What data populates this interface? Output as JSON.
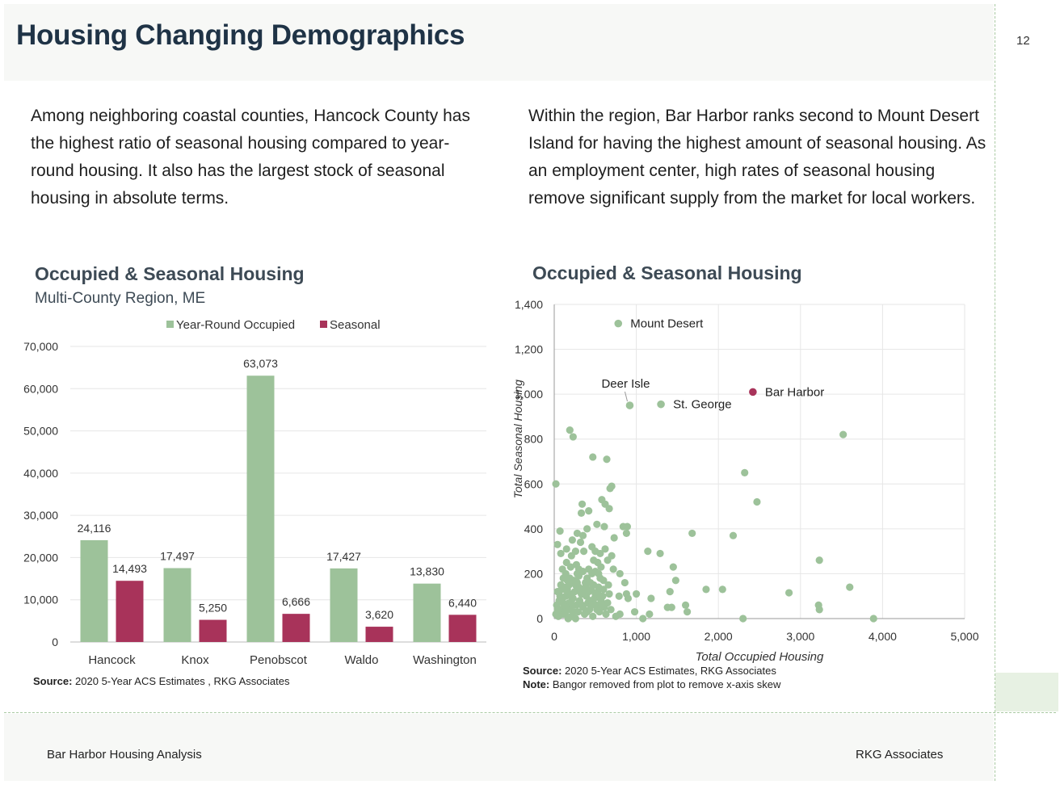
{
  "page": {
    "title": "Housing Changing Demographics",
    "page_number": "12",
    "footer_left": "Bar Harbor Housing Analysis",
    "footer_right": "RKG Associates",
    "accent_green": "#9dc29a",
    "accent_seasonal": "#a8335a"
  },
  "left": {
    "paragraph": "Among neighboring coastal counties, Hancock County has the highest ratio of seasonal housing compared to year-round housing. It also has the largest stock of seasonal housing in absolute terms.",
    "chart_title": "Occupied & Seasonal Housing",
    "chart_subtitle": "Multi-County Region, ME",
    "source_label": "Source:",
    "source_text": "2020 5-Year ACS Estimates , RKG Associates"
  },
  "right": {
    "paragraph": "Within the region, Bar Harbor ranks second to Mount Desert Island for having the highest amount of seasonal housing. As an employment center, high rates of seasonal housing remove significant supply from the market for local workers.",
    "chart_title": "Occupied & Seasonal Housing",
    "source_label": "Source:",
    "source_text": "2020 5-Year ACS Estimates, RKG Associates",
    "note_label": "Note:",
    "note_text": "Bangor removed from plot to remove x-axis skew"
  },
  "chart_data": [
    {
      "type": "bar",
      "title": "Occupied & Seasonal Housing",
      "subtitle": "Multi-County Region, ME",
      "categories": [
        "Hancock",
        "Knox",
        "Penobscot",
        "Waldo",
        "Washington"
      ],
      "series": [
        {
          "name": "Year-Round Occupied",
          "color": "#9dc29a",
          "values": [
            24116,
            17497,
            63073,
            17427,
            13830
          ],
          "labels": [
            "24,116",
            "17,497",
            "63,073",
            "17,427",
            "13,830"
          ]
        },
        {
          "name": "Seasonal",
          "color": "#a8335a",
          "values": [
            14493,
            5250,
            6666,
            3620,
            6440
          ],
          "labels": [
            "14,493",
            "5,250",
            "6,666",
            "3,620",
            "6,440"
          ]
        }
      ],
      "ylim": [
        0,
        70000
      ],
      "yticks": [
        0,
        10000,
        20000,
        30000,
        40000,
        50000,
        60000,
        70000
      ],
      "ytick_labels": [
        "0",
        "10,000",
        "20,000",
        "30,000",
        "40,000",
        "50,000",
        "60,000",
        "70,000"
      ],
      "legend_position": "top",
      "grid": true
    },
    {
      "type": "scatter",
      "title": "Occupied & Seasonal Housing",
      "xlabel": "Total Occupied Housing",
      "ylabel": "Total Seasonal Housing",
      "xlim": [
        0,
        5000
      ],
      "ylim": [
        0,
        1400
      ],
      "xticks": [
        0,
        1000,
        2000,
        3000,
        4000,
        5000
      ],
      "xtick_labels": [
        "0",
        "1,000",
        "2,000",
        "3,000",
        "4,000",
        "5,000"
      ],
      "yticks": [
        0,
        200,
        400,
        600,
        800,
        1000,
        1200,
        1400
      ],
      "ytick_labels": [
        "0",
        "200",
        "400",
        "600",
        "800",
        "1,000",
        "1,200",
        "1,400"
      ],
      "grid": true,
      "point_color": "#9dc29a",
      "highlight_color": "#a8335a",
      "labeled_points": [
        {
          "label": "Mount Desert",
          "x": 780,
          "y": 1315,
          "highlight": false
        },
        {
          "label": "Deer Isle",
          "x": 920,
          "y": 950,
          "highlight": false
        },
        {
          "label": "St. George",
          "x": 1300,
          "y": 955,
          "highlight": false
        },
        {
          "label": "Bar Harbor",
          "x": 2420,
          "y": 1010,
          "highlight": true
        }
      ],
      "points": [
        [
          20,
          600
        ],
        [
          40,
          330
        ],
        [
          70,
          390
        ],
        [
          80,
          290
        ],
        [
          100,
          220
        ],
        [
          110,
          180
        ],
        [
          190,
          840
        ],
        [
          230,
          810
        ],
        [
          470,
          720
        ],
        [
          640,
          710
        ],
        [
          700,
          590
        ],
        [
          680,
          580
        ],
        [
          580,
          530
        ],
        [
          620,
          510
        ],
        [
          340,
          510
        ],
        [
          330,
          470
        ],
        [
          420,
          480
        ],
        [
          670,
          490
        ],
        [
          840,
          410
        ],
        [
          880,
          380
        ],
        [
          890,
          410
        ],
        [
          730,
          360
        ],
        [
          520,
          420
        ],
        [
          610,
          410
        ],
        [
          220,
          350
        ],
        [
          320,
          340
        ],
        [
          150,
          310
        ],
        [
          260,
          300
        ],
        [
          210,
          280
        ],
        [
          360,
          300
        ],
        [
          460,
          320
        ],
        [
          500,
          300
        ],
        [
          560,
          290
        ],
        [
          620,
          310
        ],
        [
          650,
          260
        ],
        [
          700,
          280
        ],
        [
          270,
          240
        ],
        [
          300,
          220
        ],
        [
          140,
          200
        ],
        [
          190,
          180
        ],
        [
          240,
          170
        ],
        [
          260,
          150
        ],
        [
          300,
          140
        ],
        [
          380,
          160
        ],
        [
          420,
          220
        ],
        [
          460,
          200
        ],
        [
          480,
          260
        ],
        [
          530,
          250
        ],
        [
          560,
          180
        ],
        [
          600,
          170
        ],
        [
          660,
          150
        ],
        [
          720,
          220
        ],
        [
          800,
          200
        ],
        [
          860,
          160
        ],
        [
          790,
          100
        ],
        [
          1140,
          300
        ],
        [
          1290,
          290
        ],
        [
          1450,
          230
        ],
        [
          1480,
          170
        ],
        [
          1410,
          120
        ],
        [
          1680,
          380
        ],
        [
          1850,
          130
        ],
        [
          2050,
          130
        ],
        [
          2180,
          370
        ],
        [
          2320,
          650
        ],
        [
          2470,
          520
        ],
        [
          3520,
          820
        ],
        [
          3230,
          260
        ],
        [
          3600,
          140
        ],
        [
          2860,
          115
        ],
        [
          3220,
          60
        ],
        [
          3230,
          40
        ],
        [
          3890,
          0
        ],
        [
          2300,
          0
        ],
        [
          1600,
          60
        ],
        [
          1430,
          50
        ],
        [
          1380,
          50
        ],
        [
          1180,
          90
        ],
        [
          1000,
          110
        ],
        [
          900,
          90
        ],
        [
          880,
          110
        ],
        [
          800,
          20
        ],
        [
          750,
          10
        ],
        [
          1160,
          20
        ],
        [
          1080,
          0
        ],
        [
          980,
          30
        ],
        [
          1620,
          30
        ],
        [
          40,
          120
        ],
        [
          60,
          80
        ],
        [
          80,
          40
        ],
        [
          100,
          20
        ],
        [
          120,
          60
        ],
        [
          140,
          100
        ],
        [
          160,
          130
        ],
        [
          180,
          70
        ],
        [
          200,
          40
        ],
        [
          210,
          10
        ],
        [
          230,
          90
        ],
        [
          250,
          120
        ],
        [
          270,
          60
        ],
        [
          290,
          30
        ],
        [
          310,
          80
        ],
        [
          330,
          110
        ],
        [
          350,
          50
        ],
        [
          370,
          20
        ],
        [
          390,
          100
        ],
        [
          410,
          70
        ],
        [
          430,
          40
        ],
        [
          450,
          130
        ],
        [
          470,
          10
        ],
        [
          490,
          90
        ],
        [
          510,
          60
        ],
        [
          530,
          120
        ],
        [
          550,
          30
        ],
        [
          570,
          80
        ],
        [
          590,
          100
        ],
        [
          610,
          50
        ],
        [
          630,
          20
        ],
        [
          650,
          70
        ],
        [
          670,
          110
        ],
        [
          690,
          40
        ],
        [
          30,
          60
        ],
        [
          50,
          10
        ],
        [
          70,
          100
        ],
        [
          90,
          130
        ],
        [
          110,
          70
        ],
        [
          130,
          20
        ],
        [
          150,
          50
        ],
        [
          170,
          0
        ],
        [
          190,
          110
        ],
        [
          20,
          20
        ],
        [
          40,
          40
        ],
        [
          60,
          120
        ],
        [
          80,
          150
        ],
        [
          100,
          90
        ],
        [
          120,
          140
        ],
        [
          140,
          30
        ],
        [
          160,
          170
        ],
        [
          180,
          150
        ],
        [
          200,
          100
        ],
        [
          220,
          60
        ],
        [
          240,
          30
        ],
        [
          260,
          0
        ],
        [
          280,
          160
        ],
        [
          300,
          190
        ],
        [
          320,
          130
        ],
        [
          340,
          60
        ],
        [
          360,
          110
        ],
        [
          380,
          140
        ],
        [
          400,
          30
        ],
        [
          420,
          120
        ],
        [
          440,
          80
        ],
        [
          460,
          60
        ],
        [
          480,
          150
        ],
        [
          500,
          110
        ],
        [
          520,
          40
        ],
        [
          540,
          140
        ],
        [
          560,
          100
        ],
        [
          580,
          60
        ],
        [
          600,
          130
        ],
        [
          150,
          250
        ],
        [
          200,
          230
        ],
        [
          280,
          200
        ],
        [
          350,
          210
        ],
        [
          400,
          180
        ],
        [
          440,
          160
        ],
        [
          500,
          210
        ],
        [
          540,
          200
        ],
        [
          570,
          230
        ],
        [
          350,
          370
        ],
        [
          400,
          400
        ],
        [
          280,
          380
        ],
        [
          130,
          130
        ]
      ]
    }
  ]
}
